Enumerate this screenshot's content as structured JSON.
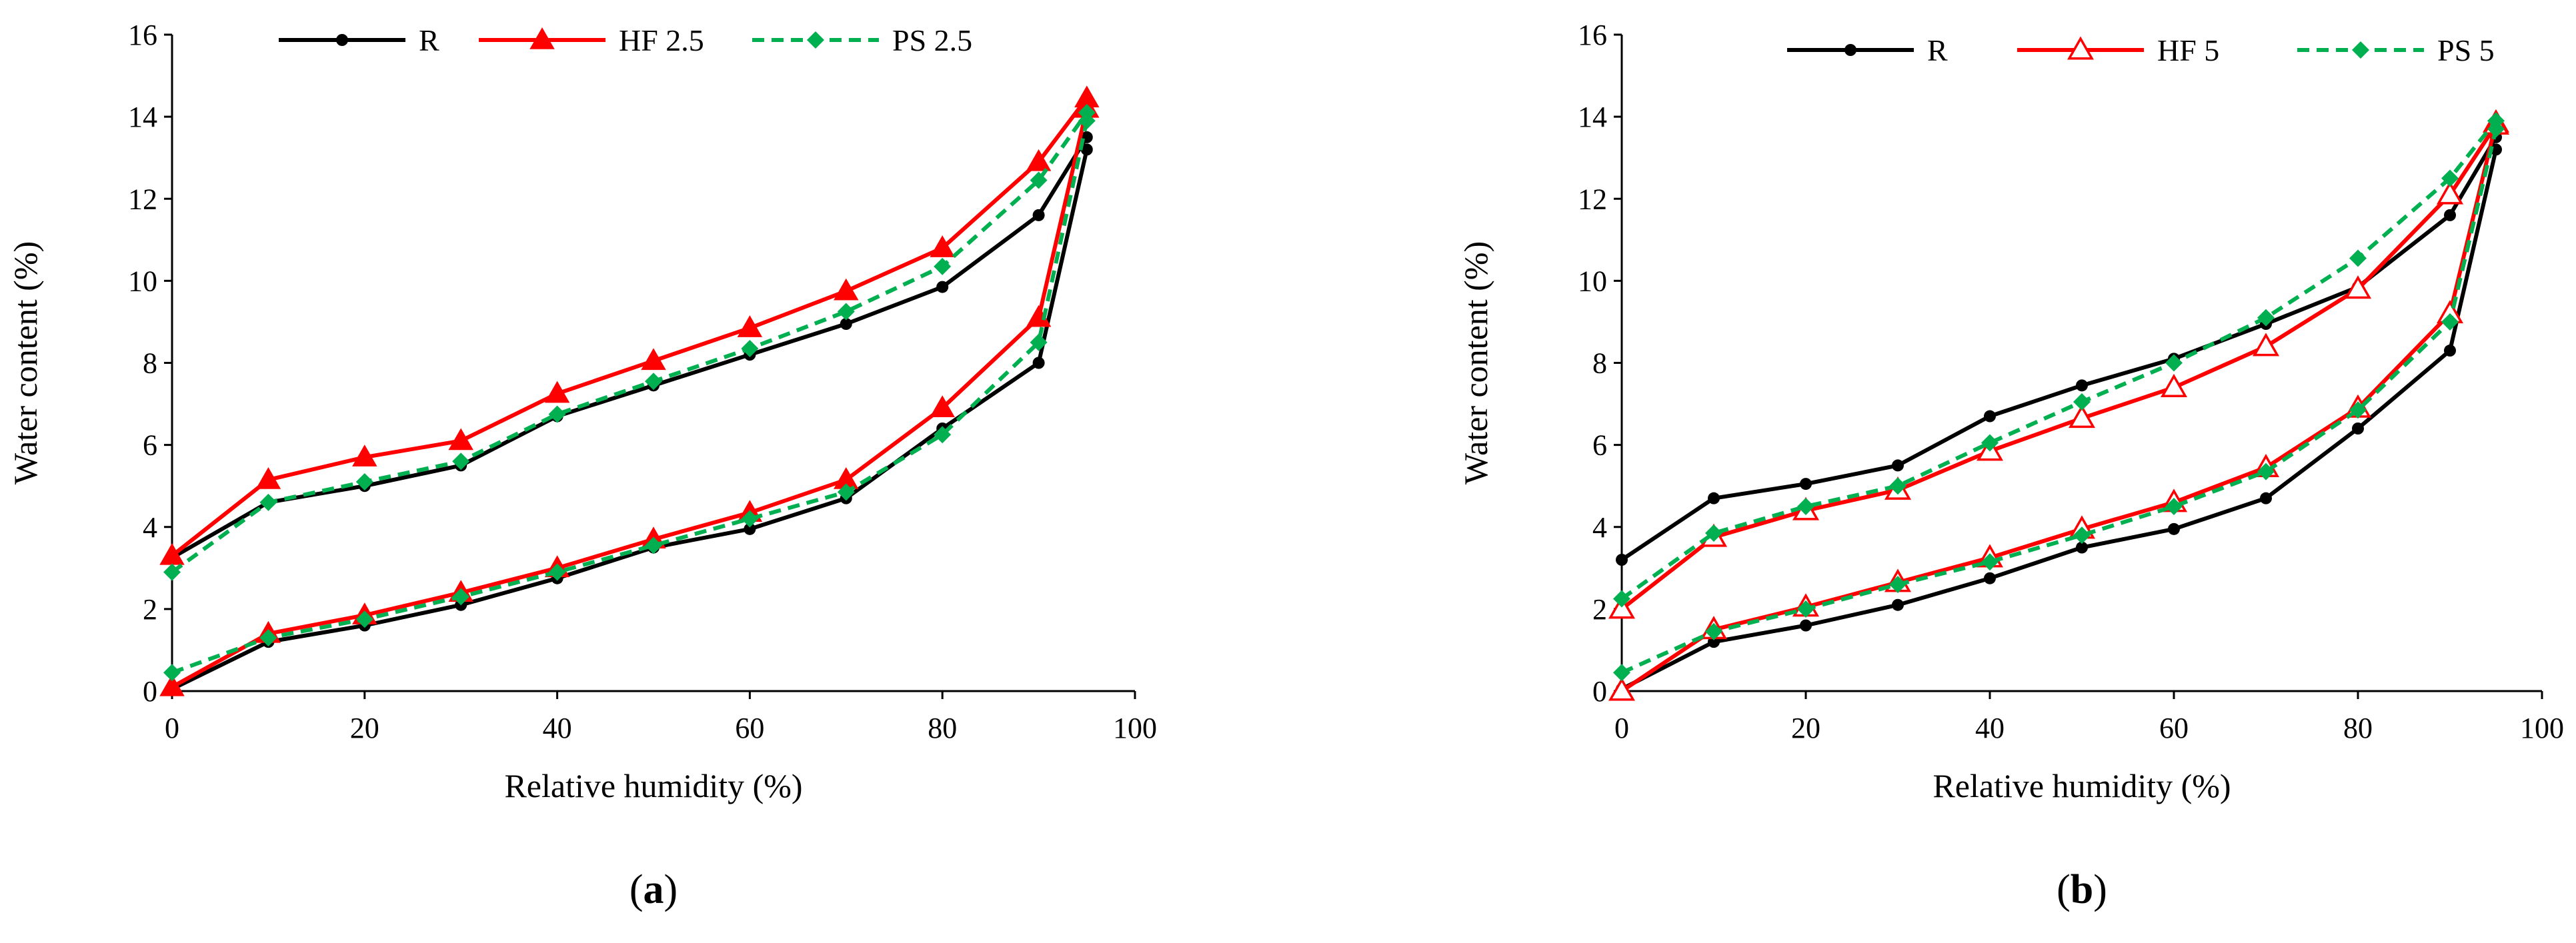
{
  "chart_data": [
    {
      "type": "line",
      "panel_label": "a",
      "title": "",
      "xlabel": "Relative humidity (%)",
      "ylabel": "Water content (%)",
      "xlim": [
        0,
        100
      ],
      "ylim": [
        0,
        16
      ],
      "xticks": [
        0,
        20,
        40,
        60,
        80,
        100
      ],
      "yticks": [
        0,
        2,
        4,
        6,
        8,
        10,
        12,
        14,
        16
      ],
      "legend_position": "top",
      "series": [
        {
          "name": "R",
          "color": "#000000",
          "dashed": false,
          "marker": "dot",
          "adsorption": {
            "x": [
              0,
              10,
              20,
              30,
              40,
              50,
              60,
              70,
              80,
              90,
              95
            ],
            "y": [
              0.05,
              1.2,
              1.6,
              2.1,
              2.75,
              3.5,
              3.95,
              4.7,
              6.4,
              8.0,
              13.2
            ]
          },
          "desorption": {
            "x": [
              0,
              10,
              20,
              30,
              40,
              50,
              60,
              70,
              80,
              90,
              95
            ],
            "y": [
              3.25,
              4.6,
              5.0,
              5.5,
              6.7,
              7.45,
              8.2,
              8.95,
              9.85,
              11.6,
              13.5
            ]
          }
        },
        {
          "name": "HF 2.5",
          "color": "#ff0000",
          "dashed": false,
          "marker": "triangle",
          "adsorption": {
            "x": [
              0,
              10,
              20,
              30,
              40,
              50,
              60,
              70,
              80,
              90,
              95
            ],
            "y": [
              0.1,
              1.4,
              1.85,
              2.4,
              3.0,
              3.7,
              4.35,
              5.15,
              6.9,
              9.1,
              14.2
            ]
          },
          "desorption": {
            "x": [
              0,
              10,
              20,
              30,
              40,
              50,
              60,
              70,
              80,
              90,
              95
            ],
            "y": [
              3.3,
              5.15,
              5.7,
              6.1,
              7.25,
              8.05,
              8.85,
              9.75,
              10.8,
              12.9,
              14.45
            ]
          }
        },
        {
          "name": "PS 2.5",
          "color": "#00b050",
          "dashed": true,
          "marker": "diamond",
          "adsorption": {
            "x": [
              0,
              10,
              20,
              30,
              40,
              50,
              60,
              70,
              80,
              90,
              95
            ],
            "y": [
              0.45,
              1.3,
              1.75,
              2.3,
              2.9,
              3.55,
              4.2,
              4.85,
              6.25,
              8.5,
              13.9
            ]
          },
          "desorption": {
            "x": [
              0,
              10,
              20,
              30,
              40,
              50,
              60,
              70,
              80,
              90,
              95
            ],
            "y": [
              2.9,
              4.6,
              5.1,
              5.6,
              6.75,
              7.55,
              8.35,
              9.25,
              10.35,
              12.45,
              14.1
            ]
          }
        }
      ]
    },
    {
      "type": "line",
      "panel_label": "b",
      "title": "",
      "xlabel": "Relative humidity (%)",
      "ylabel": "Water content (%)",
      "xlim": [
        0,
        100
      ],
      "ylim": [
        0,
        16
      ],
      "xticks": [
        0,
        20,
        40,
        60,
        80,
        100
      ],
      "yticks": [
        0,
        2,
        4,
        6,
        8,
        10,
        12,
        14,
        16
      ],
      "legend_position": "top",
      "series": [
        {
          "name": "R",
          "color": "#000000",
          "dashed": false,
          "marker": "dot",
          "adsorption": {
            "x": [
              0,
              10,
              20,
              30,
              40,
              50,
              60,
              70,
              80,
              90,
              95
            ],
            "y": [
              0.05,
              1.2,
              1.6,
              2.1,
              2.75,
              3.5,
              3.95,
              4.7,
              6.4,
              8.3,
              13.2
            ]
          },
          "desorption": {
            "x": [
              0,
              10,
              20,
              30,
              40,
              50,
              60,
              70,
              80,
              90,
              95
            ],
            "y": [
              3.2,
              4.7,
              5.05,
              5.5,
              6.7,
              7.45,
              8.1,
              8.95,
              9.85,
              11.6,
              13.5
            ]
          }
        },
        {
          "name": "HF 5",
          "color": "#ff0000",
          "dashed": false,
          "marker": "open-triangle",
          "adsorption": {
            "x": [
              0,
              10,
              20,
              30,
              40,
              50,
              60,
              70,
              80,
              90,
              95
            ],
            "y": [
              0.0,
              1.5,
              2.05,
              2.65,
              3.25,
              3.95,
              4.6,
              5.45,
              6.9,
              9.2,
              13.85
            ]
          },
          "desorption": {
            "x": [
              0,
              10,
              20,
              30,
              40,
              50,
              60,
              70,
              80,
              90,
              95
            ],
            "y": [
              2.0,
              3.75,
              4.4,
              4.9,
              5.85,
              6.65,
              7.4,
              8.4,
              9.8,
              12.1,
              13.8
            ]
          }
        },
        {
          "name": "PS 5",
          "color": "#00b050",
          "dashed": true,
          "marker": "diamond",
          "adsorption": {
            "x": [
              0,
              10,
              20,
              30,
              40,
              50,
              60,
              70,
              80,
              90,
              95
            ],
            "y": [
              0.45,
              1.45,
              2.0,
              2.6,
              3.15,
              3.8,
              4.5,
              5.35,
              6.85,
              9.0,
              13.7
            ]
          },
          "desorption": {
            "x": [
              0,
              10,
              20,
              30,
              40,
              50,
              60,
              70,
              80,
              90,
              95
            ],
            "y": [
              2.25,
              3.85,
              4.5,
              5.0,
              6.05,
              7.05,
              8.0,
              9.1,
              10.55,
              12.5,
              13.9
            ]
          }
        }
      ]
    }
  ]
}
